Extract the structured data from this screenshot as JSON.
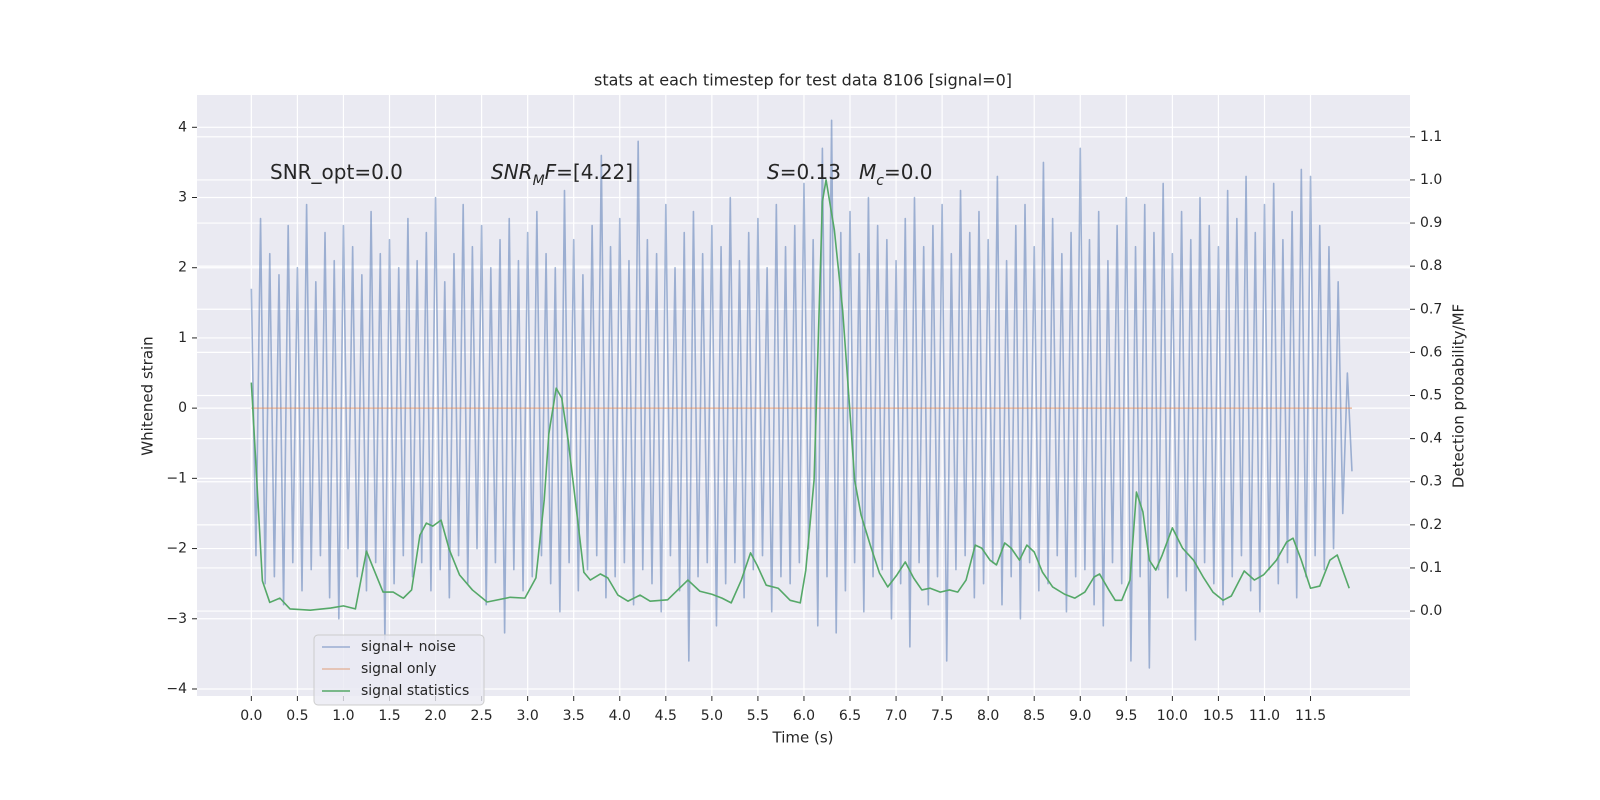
{
  "chart_data": {
    "type": "line",
    "title": "stats at each timestep for test data 8106 [signal=0]",
    "xlabel": "Time (s)",
    "ylabel": "Whitened strain",
    "y2label": "Detection probability/MF",
    "xlim": [
      -0.59,
      12.58
    ],
    "ylim": [
      -4.1,
      4.46
    ],
    "y2lim": [
      -0.197,
      1.197
    ],
    "xticks": [
      {
        "value": 0,
        "label": "0.0"
      },
      {
        "value": 0.5,
        "label": "0.5"
      },
      {
        "value": 1,
        "label": "1.0"
      },
      {
        "value": 1.5,
        "label": "1.5"
      },
      {
        "value": 2,
        "label": "2.0"
      },
      {
        "value": 2.5,
        "label": "2.5"
      },
      {
        "value": 3,
        "label": "3.0"
      },
      {
        "value": 3.5,
        "label": "3.5"
      },
      {
        "value": 4,
        "label": "4.0"
      },
      {
        "value": 4.5,
        "label": "4.5"
      },
      {
        "value": 5,
        "label": "5.0"
      },
      {
        "value": 5.5,
        "label": "5.5"
      },
      {
        "value": 6,
        "label": "6.0"
      },
      {
        "value": 6.5,
        "label": "6.5"
      },
      {
        "value": 7,
        "label": "7.0"
      },
      {
        "value": 7.5,
        "label": "7.5"
      },
      {
        "value": 8,
        "label": "8.0"
      },
      {
        "value": 8.5,
        "label": "8.5"
      },
      {
        "value": 9,
        "label": "9.0"
      },
      {
        "value": 9.5,
        "label": "9.5"
      },
      {
        "value": 10,
        "label": "10.0"
      },
      {
        "value": 10.5,
        "label": "10.5"
      },
      {
        "value": 11,
        "label": "11.0"
      },
      {
        "value": 11.5,
        "label": "11.5"
      }
    ],
    "yticks": [
      {
        "value": -4,
        "label": "−4"
      },
      {
        "value": -3,
        "label": "−3"
      },
      {
        "value": -2,
        "label": "−2"
      },
      {
        "value": -1,
        "label": "−1"
      },
      0,
      1,
      2,
      3,
      4
    ],
    "y2ticks": [
      {
        "value": 0,
        "label": "0.0"
      },
      {
        "value": 0.1,
        "label": "0.1"
      },
      {
        "value": 0.2,
        "label": "0.2"
      },
      {
        "value": 0.3,
        "label": "0.3"
      },
      {
        "value": 0.4,
        "label": "0.4"
      },
      {
        "value": 0.5,
        "label": "0.5"
      },
      {
        "value": 0.6,
        "label": "0.6"
      },
      {
        "value": 0.7,
        "label": "0.7"
      },
      {
        "value": 0.8,
        "label": "0.8"
      },
      {
        "value": 0.9,
        "label": "0.9"
      },
      {
        "value": 1,
        "label": "1.0"
      },
      {
        "value": 1.1,
        "label": "1.1"
      }
    ],
    "grid": true,
    "legend": "lower left",
    "annotations": [
      [
        {
          "text": "SNR_opt=0.0"
        }
      ],
      [
        {
          "text": "SNR",
          "italic": true
        },
        {
          "text": "M",
          "italic": true,
          "sub": true
        },
        {
          "text": "F",
          "italic": true
        },
        {
          "text": "=[4.22]"
        }
      ],
      [
        {
          "text": "S",
          "italic": true
        },
        {
          "text": "=0.13"
        }
      ],
      [
        {
          "text": "M",
          "italic": true
        },
        {
          "text": "c",
          "italic": true,
          "sub": true
        },
        {
          "text": "=0.0"
        }
      ]
    ],
    "series": [
      {
        "name": "signal+ noise",
        "color": "#4c72b0",
        "opacity": 0.5,
        "x": [
          0,
          0.05,
          0.1,
          0.15,
          0.2,
          0.25,
          0.3,
          0.35,
          0.4,
          0.45,
          0.5,
          0.55,
          0.6,
          0.65,
          0.7,
          0.75,
          0.8,
          0.85,
          0.9,
          0.95,
          1,
          1.05,
          1.1,
          1.15,
          1.2,
          1.25,
          1.3,
          1.35,
          1.4,
          1.45,
          1.5,
          1.55,
          1.6,
          1.65,
          1.7,
          1.75,
          1.8,
          1.85,
          1.9,
          1.95,
          2,
          2.05,
          2.1,
          2.15,
          2.2,
          2.25,
          2.3,
          2.35,
          2.4,
          2.45,
          2.5,
          2.55,
          2.6,
          2.65,
          2.7,
          2.75,
          2.8,
          2.85,
          2.9,
          2.95,
          3,
          3.05,
          3.1,
          3.15,
          3.2,
          3.25,
          3.3,
          3.35,
          3.4,
          3.45,
          3.5,
          3.55,
          3.6,
          3.65,
          3.7,
          3.75,
          3.8,
          3.85,
          3.9,
          3.95,
          4,
          4.05,
          4.1,
          4.15,
          4.2,
          4.25,
          4.3,
          4.35,
          4.4,
          4.45,
          4.5,
          4.55,
          4.6,
          4.65,
          4.7,
          4.75,
          4.8,
          4.85,
          4.9,
          4.95,
          5,
          5.05,
          5.1,
          5.15,
          5.2,
          5.25,
          5.3,
          5.35,
          5.4,
          5.45,
          5.5,
          5.55,
          5.6,
          5.65,
          5.7,
          5.75,
          5.8,
          5.85,
          5.9,
          5.95,
          6,
          6.05,
          6.1,
          6.15,
          6.2,
          6.25,
          6.3,
          6.35,
          6.4,
          6.45,
          6.5,
          6.55,
          6.6,
          6.65,
          6.7,
          6.75,
          6.8,
          6.85,
          6.9,
          6.95,
          7,
          7.05,
          7.1,
          7.15,
          7.2,
          7.25,
          7.3,
          7.35,
          7.4,
          7.45,
          7.5,
          7.55,
          7.6,
          7.65,
          7.7,
          7.75,
          7.8,
          7.85,
          7.9,
          7.95,
          8,
          8.05,
          8.1,
          8.15,
          8.2,
          8.25,
          8.3,
          8.35,
          8.4,
          8.45,
          8.5,
          8.55,
          8.6,
          8.65,
          8.7,
          8.75,
          8.8,
          8.85,
          8.9,
          8.95,
          9,
          9.05,
          9.1,
          9.15,
          9.2,
          9.25,
          9.3,
          9.35,
          9.4,
          9.45,
          9.5,
          9.55,
          9.6,
          9.65,
          9.7,
          9.75,
          9.8,
          9.85,
          9.9,
          9.95,
          10,
          10.05,
          10.1,
          10.15,
          10.2,
          10.25,
          10.3,
          10.35,
          10.4,
          10.45,
          10.5,
          10.55,
          10.6,
          10.65,
          10.7,
          10.75,
          10.8,
          10.85,
          10.9,
          10.95,
          11,
          11.05,
          11.1,
          11.15,
          11.2,
          11.25,
          11.3,
          11.35,
          11.4,
          11.45,
          11.5,
          11.55,
          11.6,
          11.65,
          11.7,
          11.75,
          11.8,
          11.85,
          11.9,
          11.95
        ],
        "values": [
          1.7,
          -2.1,
          2.7,
          -2.5,
          2.2,
          -2.4,
          1.9,
          -2.8,
          2.6,
          -2.2,
          2.0,
          -2.6,
          2.9,
          -2.3,
          1.8,
          -2.1,
          2.5,
          -2.7,
          2.1,
          -3.0,
          2.6,
          -2.0,
          2.3,
          -2.4,
          1.9,
          -2.6,
          2.8,
          -2.2,
          2.2,
          -3.3,
          2.4,
          -2.5,
          2.0,
          -2.1,
          2.7,
          -2.4,
          2.1,
          -2.2,
          2.5,
          -2.6,
          3.0,
          -2.3,
          1.8,
          -2.7,
          2.2,
          -2.1,
          2.9,
          -2.5,
          2.3,
          -2.0,
          2.6,
          -2.8,
          2.0,
          -2.2,
          2.4,
          -3.2,
          2.7,
          -2.3,
          2.1,
          -2.6,
          2.5,
          -2.4,
          2.8,
          -2.1,
          2.2,
          -2.5,
          2.0,
          -2.9,
          3.1,
          -2.2,
          2.4,
          -2.6,
          1.9,
          -2.3,
          2.6,
          -2.1,
          3.6,
          -2.7,
          2.3,
          -2.4,
          2.7,
          -2.2,
          2.1,
          -2.8,
          3.8,
          -2.3,
          2.4,
          -2.5,
          2.2,
          -2.9,
          2.9,
          -2.1,
          2.0,
          -2.6,
          2.5,
          -3.6,
          2.8,
          -2.4,
          2.2,
          -2.2,
          2.6,
          -3.1,
          2.3,
          -2.5,
          3.0,
          -2.2,
          2.1,
          -2.7,
          2.5,
          -2.3,
          2.7,
          -2.1,
          2.0,
          -2.9,
          2.9,
          -2.4,
          2.3,
          -2.5,
          2.6,
          -2.2,
          3.2,
          -2.0,
          2.4,
          -3.1,
          3.7,
          -2.4,
          4.1,
          -3.2,
          2.5,
          -2.6,
          2.8,
          -2.2,
          2.2,
          -2.9,
          3.0,
          -2.4,
          2.6,
          -2.3,
          2.4,
          -3.0,
          2.1,
          -2.5,
          2.7,
          -3.4,
          3.0,
          -2.2,
          2.3,
          -2.8,
          2.6,
          -2.4,
          2.9,
          -3.6,
          2.2,
          -2.3,
          3.1,
          -2.1,
          2.5,
          -2.7,
          2.8,
          -2.5,
          2.4,
          -2.2,
          3.3,
          -2.8,
          2.1,
          -2.4,
          2.6,
          -3.0,
          2.9,
          -2.2,
          2.3,
          -2.6,
          3.5,
          -2.5,
          2.7,
          -2.1,
          2.2,
          -2.9,
          2.5,
          -2.4,
          3.7,
          -2.3,
          2.4,
          -2.8,
          2.8,
          -3.1,
          2.1,
          -2.2,
          2.6,
          -2.5,
          3.0,
          -3.6,
          2.3,
          -2.4,
          2.9,
          -3.7,
          2.5,
          -2.3,
          3.2,
          -2.7,
          2.2,
          -2.4,
          2.8,
          -2.6,
          2.4,
          -3.3,
          3.0,
          -2.2,
          2.6,
          -2.5,
          2.3,
          -2.8,
          3.1,
          -2.4,
          2.7,
          -2.1,
          3.3,
          -2.6,
          2.5,
          -2.9,
          2.9,
          -2.3,
          3.2,
          -2.5,
          2.4,
          -2.2,
          2.8,
          -2.7,
          3.4,
          -2.4,
          3.3,
          -2.1,
          2.6,
          -2.3,
          2.3,
          -2.0,
          1.8,
          -1.5,
          0.5,
          -0.9
        ]
      },
      {
        "name": "signal only",
        "color": "#dd8452",
        "opacity": 0.5,
        "x": [
          0,
          11.95
        ],
        "values": [
          0,
          0
        ]
      },
      {
        "name": "signal statistics",
        "color": "#55a868",
        "opacity": 1,
        "axis": "y2",
        "x": [
          0,
          0.12,
          0.2,
          0.31,
          0.42,
          0.64,
          0.86,
          1.0,
          1.13,
          1.25,
          1.31,
          1.43,
          1.54,
          1.65,
          1.74,
          1.83,
          1.9,
          1.97,
          2.06,
          2.15,
          2.26,
          2.4,
          2.56,
          2.81,
          2.97,
          3.09,
          3.18,
          3.23,
          3.31,
          3.37,
          3.44,
          3.53,
          3.61,
          3.68,
          3.79,
          3.87,
          3.98,
          4.09,
          4.22,
          4.33,
          4.52,
          4.74,
          4.87,
          5.0,
          5.11,
          5.21,
          5.32,
          5.42,
          5.49,
          5.59,
          5.72,
          5.85,
          5.96,
          6.02,
          6.11,
          6.2,
          6.24,
          6.33,
          6.42,
          6.49,
          6.55,
          6.62,
          6.72,
          6.82,
          6.91,
          7.01,
          7.1,
          7.19,
          7.28,
          7.37,
          7.48,
          7.58,
          7.67,
          7.76,
          7.86,
          7.93,
          8.02,
          8.09,
          8.18,
          8.25,
          8.34,
          8.42,
          8.5,
          8.59,
          8.7,
          8.83,
          8.94,
          9.05,
          9.15,
          9.21,
          9.31,
          9.38,
          9.45,
          9.54,
          9.61,
          9.68,
          9.75,
          9.82,
          9.89,
          10.0,
          10.11,
          10.23,
          10.34,
          10.44,
          10.55,
          10.64,
          10.78,
          10.89,
          10.99,
          11.13,
          11.24,
          11.31,
          11.4,
          11.5,
          11.6,
          11.71,
          11.79,
          11.92
        ],
        "values": [
          0.53,
          0.07,
          0.02,
          0.03,
          0.005,
          0.002,
          0.007,
          0.012,
          0.005,
          0.139,
          0.107,
          0.044,
          0.044,
          0.03,
          0.049,
          0.176,
          0.204,
          0.197,
          0.211,
          0.142,
          0.084,
          0.049,
          0.021,
          0.032,
          0.03,
          0.077,
          0.258,
          0.411,
          0.517,
          0.494,
          0.396,
          0.234,
          0.09,
          0.072,
          0.086,
          0.077,
          0.037,
          0.023,
          0.037,
          0.023,
          0.026,
          0.072,
          0.046,
          0.039,
          0.03,
          0.019,
          0.072,
          0.135,
          0.107,
          0.06,
          0.053,
          0.025,
          0.019,
          0.095,
          0.304,
          0.95,
          1.0,
          0.884,
          0.698,
          0.49,
          0.304,
          0.223,
          0.153,
          0.088,
          0.056,
          0.084,
          0.114,
          0.077,
          0.049,
          0.053,
          0.044,
          0.049,
          0.044,
          0.072,
          0.153,
          0.146,
          0.118,
          0.107,
          0.158,
          0.146,
          0.118,
          0.153,
          0.137,
          0.09,
          0.056,
          0.039,
          0.03,
          0.044,
          0.079,
          0.086,
          0.049,
          0.025,
          0.025,
          0.072,
          0.276,
          0.23,
          0.118,
          0.095,
          0.13,
          0.193,
          0.146,
          0.118,
          0.077,
          0.044,
          0.025,
          0.035,
          0.093,
          0.072,
          0.084,
          0.118,
          0.16,
          0.169,
          0.118,
          0.053,
          0.058,
          0.118,
          0.13,
          0.053
        ]
      }
    ]
  }
}
